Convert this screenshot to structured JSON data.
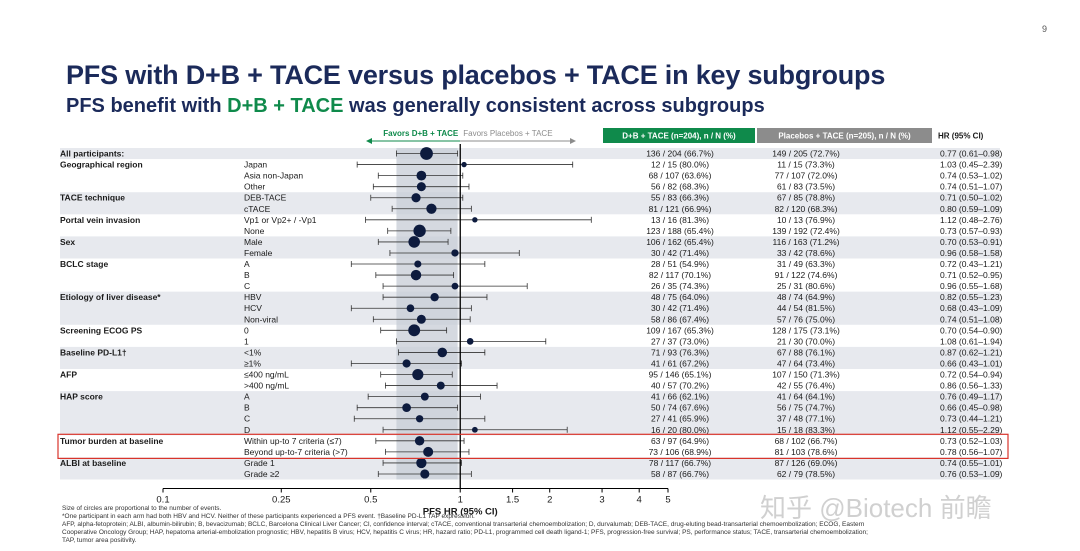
{
  "slide_number": "9",
  "title": "PFS with D+B + TACE versus placebos + TACE in key subgroups",
  "subtitle": {
    "pre": "PFS benefit with ",
    "highlight": "D+B + TACE",
    "post": " was generally consistent across subgroups"
  },
  "watermark": "知乎 @Biotech 前瞻",
  "footnotes": [
    "Size of circles are proportional to the number of events.",
    "*One participant in each arm had both HBV and HCV. Neither of these participants experienced a PFS event. †Baseline PD-L1 TAP expression.",
    "AFP, alpha-fetoprotein; ALBI, albumin-bilirubin; B, bevacizumab; BCLC, Barcelona Clinical Liver Cancer; CI, confidence interval; cTACE, conventional transarterial chemoembolization; D, durvalumab; DEB-TACE, drug-eluting bead-transarterial chemoembolization; ECOG, Eastern",
    "Cooperative Oncology Group; HAP, hepatoma arterial-embolization prognostic; HBV, hepatitis B virus; HCV, hepatitis C virus; HR, hazard ratio; PD-L1, programmed cell death ligand-1; PFS, progression-free survival; PS, performance status; TACE, transarterial chemoembolization;",
    "TAP, tumor area positivity."
  ],
  "colors": {
    "title": "#1b2a5a",
    "accent_green": "#0f8a4b",
    "placebo_gray": "#8c8c8c",
    "band": "#c7ccd6",
    "stripe": "#e7e9ee",
    "marker": "#0d1b3e",
    "highlight_box": "#d9342b"
  },
  "chart_data": {
    "type": "forest",
    "x_scale": "log",
    "xlim": [
      0.1,
      5
    ],
    "xticks": [
      0.1,
      0.25,
      0.5,
      1,
      1.5,
      2,
      3,
      4,
      5
    ],
    "xtick_labels": [
      "0.1",
      "0.25",
      "0.5",
      "1",
      "1.5",
      "2",
      "3",
      "4",
      "5"
    ],
    "xlabel": "PFS HR (95% CI)",
    "reference_line": 1,
    "overall_ci_band": [
      0.61,
      0.98
    ],
    "favors_left": "Favors D+B + TACE",
    "favors_right": "Favors Placebos + TACE",
    "col_headers": {
      "treatment": "D+B + TACE (n=204), n / N (%)",
      "placebo": "Placebos + TACE (n=205), n / N (%)",
      "hr": "HR (95% CI)"
    },
    "highlighted_group": "Tumor burden at baseline",
    "groups": [
      {
        "label": "All participants:",
        "rows": [
          {
            "sub": "",
            "trt": "136 / 204 (66.7%)",
            "pbo": "149 / 205 (72.7%)",
            "hrtext": "0.77 (0.61–0.98)",
            "hr": 0.77,
            "lo": 0.61,
            "hi": 0.98,
            "events": 285
          }
        ]
      },
      {
        "label": "Geographical region",
        "rows": [
          {
            "sub": "Japan",
            "trt": "12 / 15 (80.0%)",
            "pbo": "11 / 15 (73.3%)",
            "hrtext": "1.03 (0.45–2.39)",
            "hr": 1.03,
            "lo": 0.45,
            "hi": 2.39,
            "events": 23
          },
          {
            "sub": "Asia non-Japan",
            "trt": "68 / 107 (63.6%)",
            "pbo": "77 / 107 (72.0%)",
            "hrtext": "0.74 (0.53–1.02)",
            "hr": 0.74,
            "lo": 0.53,
            "hi": 1.02,
            "events": 145
          },
          {
            "sub": "Other",
            "trt": "56 / 82 (68.3%)",
            "pbo": "61 / 83 (73.5%)",
            "hrtext": "0.74 (0.51–1.07)",
            "hr": 0.74,
            "lo": 0.51,
            "hi": 1.07,
            "events": 117
          }
        ]
      },
      {
        "label": "TACE technique",
        "rows": [
          {
            "sub": "DEB-TACE",
            "trt": "55 / 83 (66.3%)",
            "pbo": "67 / 85 (78.8%)",
            "hrtext": "0.71 (0.50–1.02)",
            "hr": 0.71,
            "lo": 0.5,
            "hi": 1.02,
            "events": 122
          },
          {
            "sub": "cTACE",
            "trt": "81 / 121 (66.9%)",
            "pbo": "82 / 120 (68.3%)",
            "hrtext": "0.80 (0.59–1.09)",
            "hr": 0.8,
            "lo": 0.59,
            "hi": 1.09,
            "events": 163
          }
        ]
      },
      {
        "label": "Portal vein invasion",
        "rows": [
          {
            "sub": "Vp1 or Vp2+ / -Vp1",
            "trt": "13 / 16 (81.3%)",
            "pbo": "10 / 13 (76.9%)",
            "hrtext": "1.12 (0.48–2.76)",
            "hr": 1.12,
            "lo": 0.48,
            "hi": 2.76,
            "events": 23
          },
          {
            "sub": "None",
            "trt": "123 / 188 (65.4%)",
            "pbo": "139 / 192 (72.4%)",
            "hrtext": "0.73 (0.57–0.93)",
            "hr": 0.73,
            "lo": 0.57,
            "hi": 0.93,
            "events": 262
          }
        ]
      },
      {
        "label": "Sex",
        "rows": [
          {
            "sub": "Male",
            "trt": "106 / 162 (65.4%)",
            "pbo": "116 / 163 (71.2%)",
            "hrtext": "0.70 (0.53–0.91)",
            "hr": 0.7,
            "lo": 0.53,
            "hi": 0.91,
            "events": 222
          },
          {
            "sub": "Female",
            "trt": "30 / 42 (71.4%)",
            "pbo": "33 / 42 (78.6%)",
            "hrtext": "0.96 (0.58–1.58)",
            "hr": 0.96,
            "lo": 0.58,
            "hi": 1.58,
            "events": 63
          }
        ]
      },
      {
        "label": "BCLC stage",
        "rows": [
          {
            "sub": "A",
            "trt": "28 / 51 (54.9%)",
            "pbo": "31 / 49 (63.3%)",
            "hrtext": "0.72 (0.43–1.21)",
            "hr": 0.72,
            "lo": 0.43,
            "hi": 1.21,
            "events": 59
          },
          {
            "sub": "B",
            "trt": "82 / 117 (70.1%)",
            "pbo": "91 / 122 (74.6%)",
            "hrtext": "0.71 (0.52–0.95)",
            "hr": 0.71,
            "lo": 0.52,
            "hi": 0.95,
            "events": 173
          },
          {
            "sub": "C",
            "trt": "26 / 35 (74.3%)",
            "pbo": "25 / 31 (80.6%)",
            "hrtext": "0.96 (0.55–1.68)",
            "hr": 0.96,
            "lo": 0.55,
            "hi": 1.68,
            "events": 51
          }
        ]
      },
      {
        "label": "Etiology  of liver disease*",
        "rows": [
          {
            "sub": "HBV",
            "trt": "48 / 75 (64.0%)",
            "pbo": "48 / 74 (64.9%)",
            "hrtext": "0.82 (0.55–1.23)",
            "hr": 0.82,
            "lo": 0.55,
            "hi": 1.23,
            "events": 96
          },
          {
            "sub": "HCV",
            "trt": "30 / 42 (71.4%)",
            "pbo": "44 / 54 (81.5%)",
            "hrtext": "0.68 (0.43–1.09)",
            "hr": 0.68,
            "lo": 0.43,
            "hi": 1.09,
            "events": 74
          },
          {
            "sub": "Non-viral",
            "trt": "58 / 86 (67.4%)",
            "pbo": "57 / 76 (75.0%)",
            "hrtext": "0.74 (0.51–1.08)",
            "hr": 0.74,
            "lo": 0.51,
            "hi": 1.08,
            "events": 115
          }
        ]
      },
      {
        "label": "Screening ECOG  PS",
        "rows": [
          {
            "sub": "0",
            "trt": "109 / 167 (65.3%)",
            "pbo": "128 / 175 (73.1%)",
            "hrtext": "0.70 (0.54–0.90)",
            "hr": 0.7,
            "lo": 0.54,
            "hi": 0.9,
            "events": 237
          },
          {
            "sub": "1",
            "trt": "27 / 37 (73.0%)",
            "pbo": "21 / 30 (70.0%)",
            "hrtext": "1.08 (0.61–1.94)",
            "hr": 1.08,
            "lo": 0.61,
            "hi": 1.94,
            "events": 48
          }
        ]
      },
      {
        "label": "Baseline PD-L1†",
        "rows": [
          {
            "sub": "<1%",
            "trt": "71 / 93 (76.3%)",
            "pbo": "67 / 88 (76.1%)",
            "hrtext": "0.87 (0.62–1.21)",
            "hr": 0.87,
            "lo": 0.62,
            "hi": 1.21,
            "events": 138
          },
          {
            "sub": "≥1%",
            "trt": "41 / 61 (67.2%)",
            "pbo": "47 / 64 (73.4%)",
            "hrtext": "0.66 (0.43–1.01)",
            "hr": 0.66,
            "lo": 0.43,
            "hi": 1.01,
            "events": 88
          }
        ]
      },
      {
        "label": "AFP",
        "rows": [
          {
            "sub": "≤400 ng/mL",
            "trt": "95 / 146 (65.1%)",
            "pbo": "107 / 150 (71.3%)",
            "hrtext": "0.72 (0.54–0.94)",
            "hr": 0.72,
            "lo": 0.54,
            "hi": 0.94,
            "events": 202
          },
          {
            "sub": ">400 ng/mL",
            "trt": "40 / 57 (70.2%)",
            "pbo": "42 / 55 (76.4%)",
            "hrtext": "0.86 (0.56–1.33)",
            "hr": 0.86,
            "lo": 0.56,
            "hi": 1.33,
            "events": 82
          }
        ]
      },
      {
        "label": "HAP score",
        "rows": [
          {
            "sub": "A",
            "trt": "41 / 66 (62.1%)",
            "pbo": "41 / 64 (64.1%)",
            "hrtext": "0.76 (0.49–1.17)",
            "hr": 0.76,
            "lo": 0.49,
            "hi": 1.17,
            "events": 82
          },
          {
            "sub": "B",
            "trt": "50 / 74 (67.6%)",
            "pbo": "56 / 75 (74.7%)",
            "hrtext": "0.66 (0.45–0.98)",
            "hr": 0.66,
            "lo": 0.45,
            "hi": 0.98,
            "events": 106
          },
          {
            "sub": "C",
            "trt": "27 / 41 (65.9%)",
            "pbo": "37 / 48 (77.1%)",
            "hrtext": "0.73 (0.44–1.21)",
            "hr": 0.73,
            "lo": 0.44,
            "hi": 1.21,
            "events": 64
          },
          {
            "sub": "D",
            "trt": "16 / 20 (80.0%)",
            "pbo": "15 / 18 (83.3%)",
            "hrtext": "1.12 (0.55–2.29)",
            "hr": 1.12,
            "lo": 0.55,
            "hi": 2.29,
            "events": 31
          }
        ]
      },
      {
        "label": "Tumor burden at baseline",
        "rows": [
          {
            "sub": "Within up-to 7 criteria (≤7)",
            "trt": "63 / 97 (64.9%)",
            "pbo": "68 / 102 (66.7%)",
            "hrtext": "0.73 (0.52–1.03)",
            "hr": 0.73,
            "lo": 0.52,
            "hi": 1.03,
            "events": 131
          },
          {
            "sub": "Beyond up-to-7 criteria (>7)",
            "trt": "73 / 106 (68.9%)",
            "pbo": "81 / 103 (78.6%)",
            "hrtext": "0.78 (0.56–1.07)",
            "hr": 0.78,
            "lo": 0.56,
            "hi": 1.07,
            "events": 154
          }
        ]
      },
      {
        "label": "ALBI at baseline",
        "rows": [
          {
            "sub": "Grade 1",
            "trt": "78 / 117 (66.7%)",
            "pbo": "87 / 126 (69.0%)",
            "hrtext": "0.74 (0.55–1.01)",
            "hr": 0.74,
            "lo": 0.55,
            "hi": 1.01,
            "events": 165
          },
          {
            "sub": "Grade ≥2",
            "trt": "58 / 87 (66.7%)",
            "pbo": "62 / 79 (78.5%)",
            "hrtext": "0.76 (0.53–1.09)",
            "hr": 0.76,
            "lo": 0.53,
            "hi": 1.09,
            "events": 120
          }
        ]
      }
    ]
  }
}
